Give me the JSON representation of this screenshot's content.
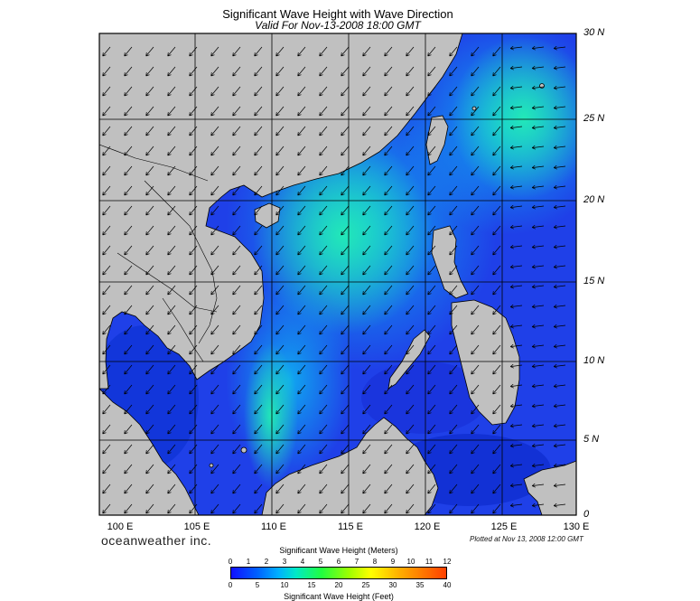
{
  "title": "Significant Wave Height with Wave Direction",
  "subtitle": "Valid For Nov-13-2008 18:00 GMT",
  "brand": "oceanweather inc.",
  "plotted": "Plotted at Nov 13, 2008 12:00 GMT",
  "lat_labels": [
    "30 N",
    "25 N",
    "20 N",
    "15 N",
    "10 N",
    "5 N",
    "0"
  ],
  "lon_labels": [
    "100 E",
    "105 E",
    "110 E",
    "115 E",
    "120 E",
    "125 E",
    "130 E"
  ],
  "scale": {
    "meters_title": "Significant Wave Height (Meters)",
    "meters_ticks": [
      "0",
      "1",
      "2",
      "3",
      "4",
      "5",
      "6",
      "7",
      "8",
      "9",
      "10",
      "11",
      "12"
    ],
    "feet_title": "Significant Wave Height (Feet)",
    "feet_ticks": [
      "0",
      "5",
      "10",
      "15",
      "20",
      "25",
      "30",
      "35",
      "40"
    ]
  },
  "colors": {
    "land": "#c0c0c0",
    "ocean_low": "#1e2ce0",
    "ocean_mid": "#0f7ef5",
    "ocean_high": "#22e4c8"
  }
}
